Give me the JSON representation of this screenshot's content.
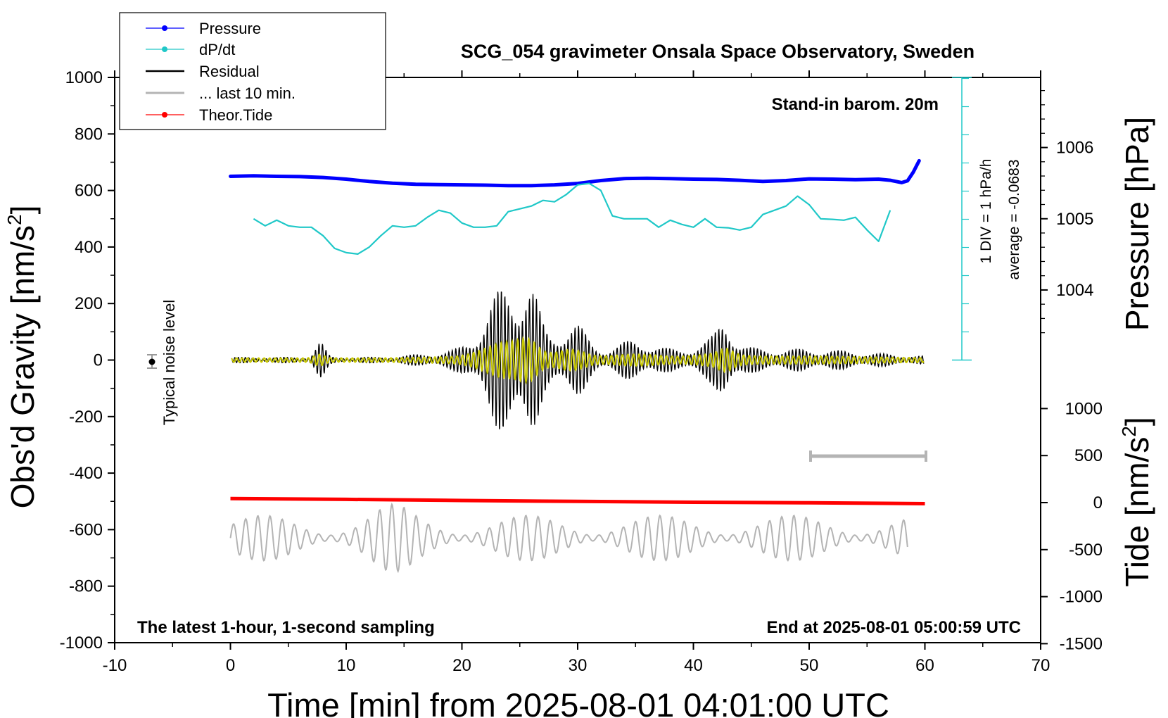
{
  "chart_data": {
    "type": "line",
    "title": "SCG_054 gravimeter Onsala Space Observatory, Sweden",
    "xlabel": "Time [min] from 2025-08-01 04:01:00 UTC",
    "ylabel_left_text": "Obs'd Gravity [nm/s",
    "ylabel_left_sup": "2",
    "ylabel_left_end": "]",
    "ylabel_right_pressure": "Pressure [hPa]",
    "ylabel_right_tide_text": "Tide [nm/s",
    "ylabel_right_tide_sup": "2",
    "ylabel_right_tide_end": "]",
    "xlim": [
      -10,
      70
    ],
    "ylim": [
      -1000,
      1000
    ],
    "x_ticks": [
      "-10",
      "0",
      "10",
      "20",
      "30",
      "40",
      "50",
      "60",
      "70"
    ],
    "y_ticks": [
      "1000",
      "800",
      "600",
      "400",
      "200",
      "0",
      "-200",
      "-400",
      "-600",
      "-800",
      "-1000"
    ],
    "pressure_ticks": [
      "1006",
      "1005",
      "1004"
    ],
    "tide_ticks": [
      "1000",
      "500",
      "0",
      "-500",
      "-1000",
      "-1500"
    ],
    "annotations": {
      "barometer": "Stand-in barom. 20m",
      "dpdt_scale": "1 DIV = 1 hPa/h",
      "dpdt_average": "average = -0.0683",
      "noise": "Typical noise level",
      "latest": "The latest 1-hour, 1-second sampling",
      "end_time": "End at 2025-08-01 05:00:59 UTC"
    },
    "legend": [
      "Pressure",
      "dP/dt",
      "Residual",
      "... last 10 min.",
      "Theor.Tide"
    ],
    "colors": {
      "pressure": "#0000ff",
      "dpdt": "#20c8c8",
      "residual": "#000000",
      "residual_filtered": "#c8c800",
      "last10": "#b4b4b4",
      "tide": "#ff0000"
    },
    "series": [
      {
        "name": "Pressure",
        "x": [
          0,
          2,
          4,
          6,
          8,
          10,
          12,
          14,
          16,
          18,
          20,
          22,
          24,
          26,
          28,
          30,
          32,
          34,
          36,
          38,
          40,
          42,
          44,
          46,
          48,
          50,
          52,
          54,
          56,
          57,
          58,
          58.5,
          59,
          59.5
        ],
        "y": [
          650,
          652,
          650,
          649,
          646,
          640,
          632,
          626,
          622,
          621,
          620,
          619,
          617,
          617,
          620,
          625,
          635,
          642,
          643,
          642,
          640,
          639,
          636,
          632,
          635,
          641,
          640,
          638,
          640,
          636,
          628,
          634,
          665,
          705
        ]
      },
      {
        "name": "dP/dt",
        "x": [
          2,
          3,
          4,
          5,
          6,
          7,
          8,
          9,
          10,
          11,
          12,
          13,
          14,
          15,
          16,
          17,
          18,
          19,
          20,
          21,
          22,
          23,
          24,
          25,
          26,
          27,
          28,
          29,
          30,
          31,
          32,
          33,
          34,
          35,
          36,
          37,
          38,
          39,
          40,
          41,
          42,
          43,
          44,
          45,
          46,
          47,
          48,
          49,
          50,
          51,
          52,
          53,
          54,
          55,
          56,
          57
        ],
        "y": [
          500,
          475,
          495,
          475,
          470,
          470,
          440,
          395,
          380,
          375,
          400,
          440,
          475,
          470,
          475,
          505,
          530,
          520,
          485,
          470,
          470,
          475,
          525,
          535,
          545,
          565,
          560,
          585,
          620,
          625,
          600,
          510,
          500,
          500,
          500,
          470,
          495,
          480,
          470,
          500,
          470,
          468,
          460,
          470,
          515,
          530,
          545,
          580,
          550,
          500,
          498,
          495,
          505,
          460,
          420,
          530
        ]
      },
      {
        "name": "Theor.Tide",
        "x": [
          0,
          10,
          20,
          30,
          40,
          50,
          60
        ],
        "y": [
          -490,
          -493,
          -497,
          -500,
          -503,
          -505,
          -508
        ]
      }
    ],
    "series_dpdt_baseline": 500,
    "series_last10": {
      "x0": 0,
      "x1": 58.5,
      "center": -630
    }
  }
}
